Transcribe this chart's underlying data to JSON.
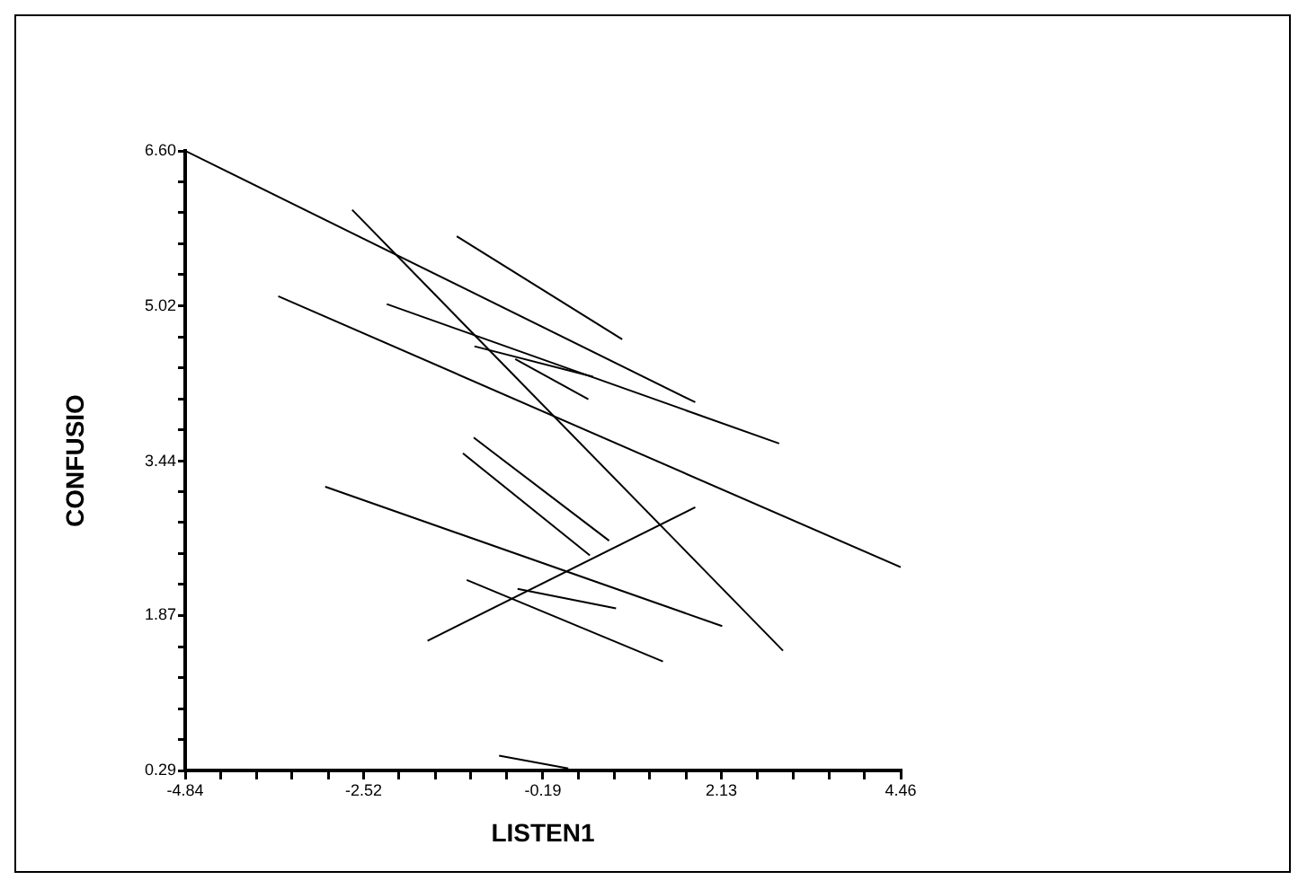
{
  "chart_data": {
    "type": "line",
    "xlabel": "LISTEN1",
    "ylabel": "CONFUSIO",
    "xlim": [
      -4.84,
      4.46
    ],
    "ylim": [
      0.29,
      6.6
    ],
    "xticks": [
      -4.84,
      {
        "value": -4.38,
        "label": null
      },
      {
        "value": -3.91,
        "label": null
      },
      {
        "value": -3.45,
        "label": null
      },
      {
        "value": -2.98,
        "label": null
      },
      -2.52,
      {
        "value": -2.06,
        "label": null
      },
      {
        "value": -1.59,
        "label": null
      },
      {
        "value": -1.13,
        "label": null
      },
      {
        "value": -0.66,
        "label": null
      },
      -0.19,
      {
        "value": 0.27,
        "label": null
      },
      {
        "value": 0.74,
        "label": null
      },
      {
        "value": 1.2,
        "label": null
      },
      {
        "value": 1.67,
        "label": null
      },
      2.13,
      {
        "value": 2.6,
        "label": null
      },
      {
        "value": 3.06,
        "label": null
      },
      {
        "value": 3.53,
        "label": null
      },
      {
        "value": 3.99,
        "label": null
      },
      4.46
    ],
    "yticks": [
      0.29,
      {
        "value": 0.61,
        "label": null
      },
      {
        "value": 0.92,
        "label": null
      },
      {
        "value": 1.24,
        "label": null
      },
      {
        "value": 1.55,
        "label": null
      },
      1.87,
      {
        "value": 2.19,
        "label": null
      },
      {
        "value": 2.5,
        "label": null
      },
      {
        "value": 2.82,
        "label": null
      },
      {
        "value": 3.13,
        "label": null
      },
      3.44,
      {
        "value": 3.76,
        "label": null
      },
      {
        "value": 4.07,
        "label": null
      },
      {
        "value": 4.39,
        "label": null
      },
      {
        "value": 4.7,
        "label": null
      },
      5.02,
      {
        "value": 5.34,
        "label": null
      },
      {
        "value": 5.65,
        "label": null
      },
      {
        "value": 5.97,
        "label": null
      },
      {
        "value": 6.28,
        "label": null
      },
      {
        "value": 6.6,
        "label": "6.60"
      }
    ],
    "grid": false,
    "legend": false,
    "marker": "none",
    "line_style": "solid",
    "series": [
      {
        "color": "#000000",
        "x": [
          -4.84,
          1.79
        ],
        "values": [
          6.6,
          4.04
        ]
      },
      {
        "color": "#000000",
        "x": [
          -2.67,
          2.93
        ],
        "values": [
          6.0,
          1.51
        ]
      },
      {
        "color": "#000000",
        "x": [
          -1.31,
          0.84
        ],
        "values": [
          5.73,
          4.68
        ]
      },
      {
        "color": "#000000",
        "x": [
          -3.63,
          4.46
        ],
        "values": [
          5.12,
          2.36
        ]
      },
      {
        "color": "#000000",
        "x": [
          -2.22,
          2.88
        ],
        "values": [
          5.04,
          3.62
        ]
      },
      {
        "color": "#000000",
        "x": [
          -1.08,
          0.46
        ],
        "values": [
          4.61,
          4.3
        ]
      },
      {
        "color": "#000000",
        "x": [
          -0.55,
          0.4
        ],
        "values": [
          4.48,
          4.07
        ]
      },
      {
        "color": "#000000",
        "x": [
          -1.09,
          0.67
        ],
        "values": [
          3.68,
          2.63
        ]
      },
      {
        "color": "#000000",
        "x": [
          -1.23,
          0.42
        ],
        "values": [
          3.52,
          2.48
        ]
      },
      {
        "color": "#000000",
        "x": [
          -3.02,
          2.14
        ],
        "values": [
          3.18,
          1.76
        ]
      },
      {
        "color": "#000000",
        "x": [
          -1.69,
          1.79
        ],
        "values": [
          1.61,
          2.97
        ]
      },
      {
        "color": "#000000",
        "x": [
          -1.18,
          1.37
        ],
        "values": [
          2.23,
          1.4
        ]
      },
      {
        "color": "#000000",
        "x": [
          -0.52,
          0.76
        ],
        "values": [
          2.14,
          1.94
        ]
      },
      {
        "color": "#000000",
        "x": [
          -0.76,
          0.14
        ],
        "values": [
          0.44,
          0.31
        ]
      }
    ]
  }
}
